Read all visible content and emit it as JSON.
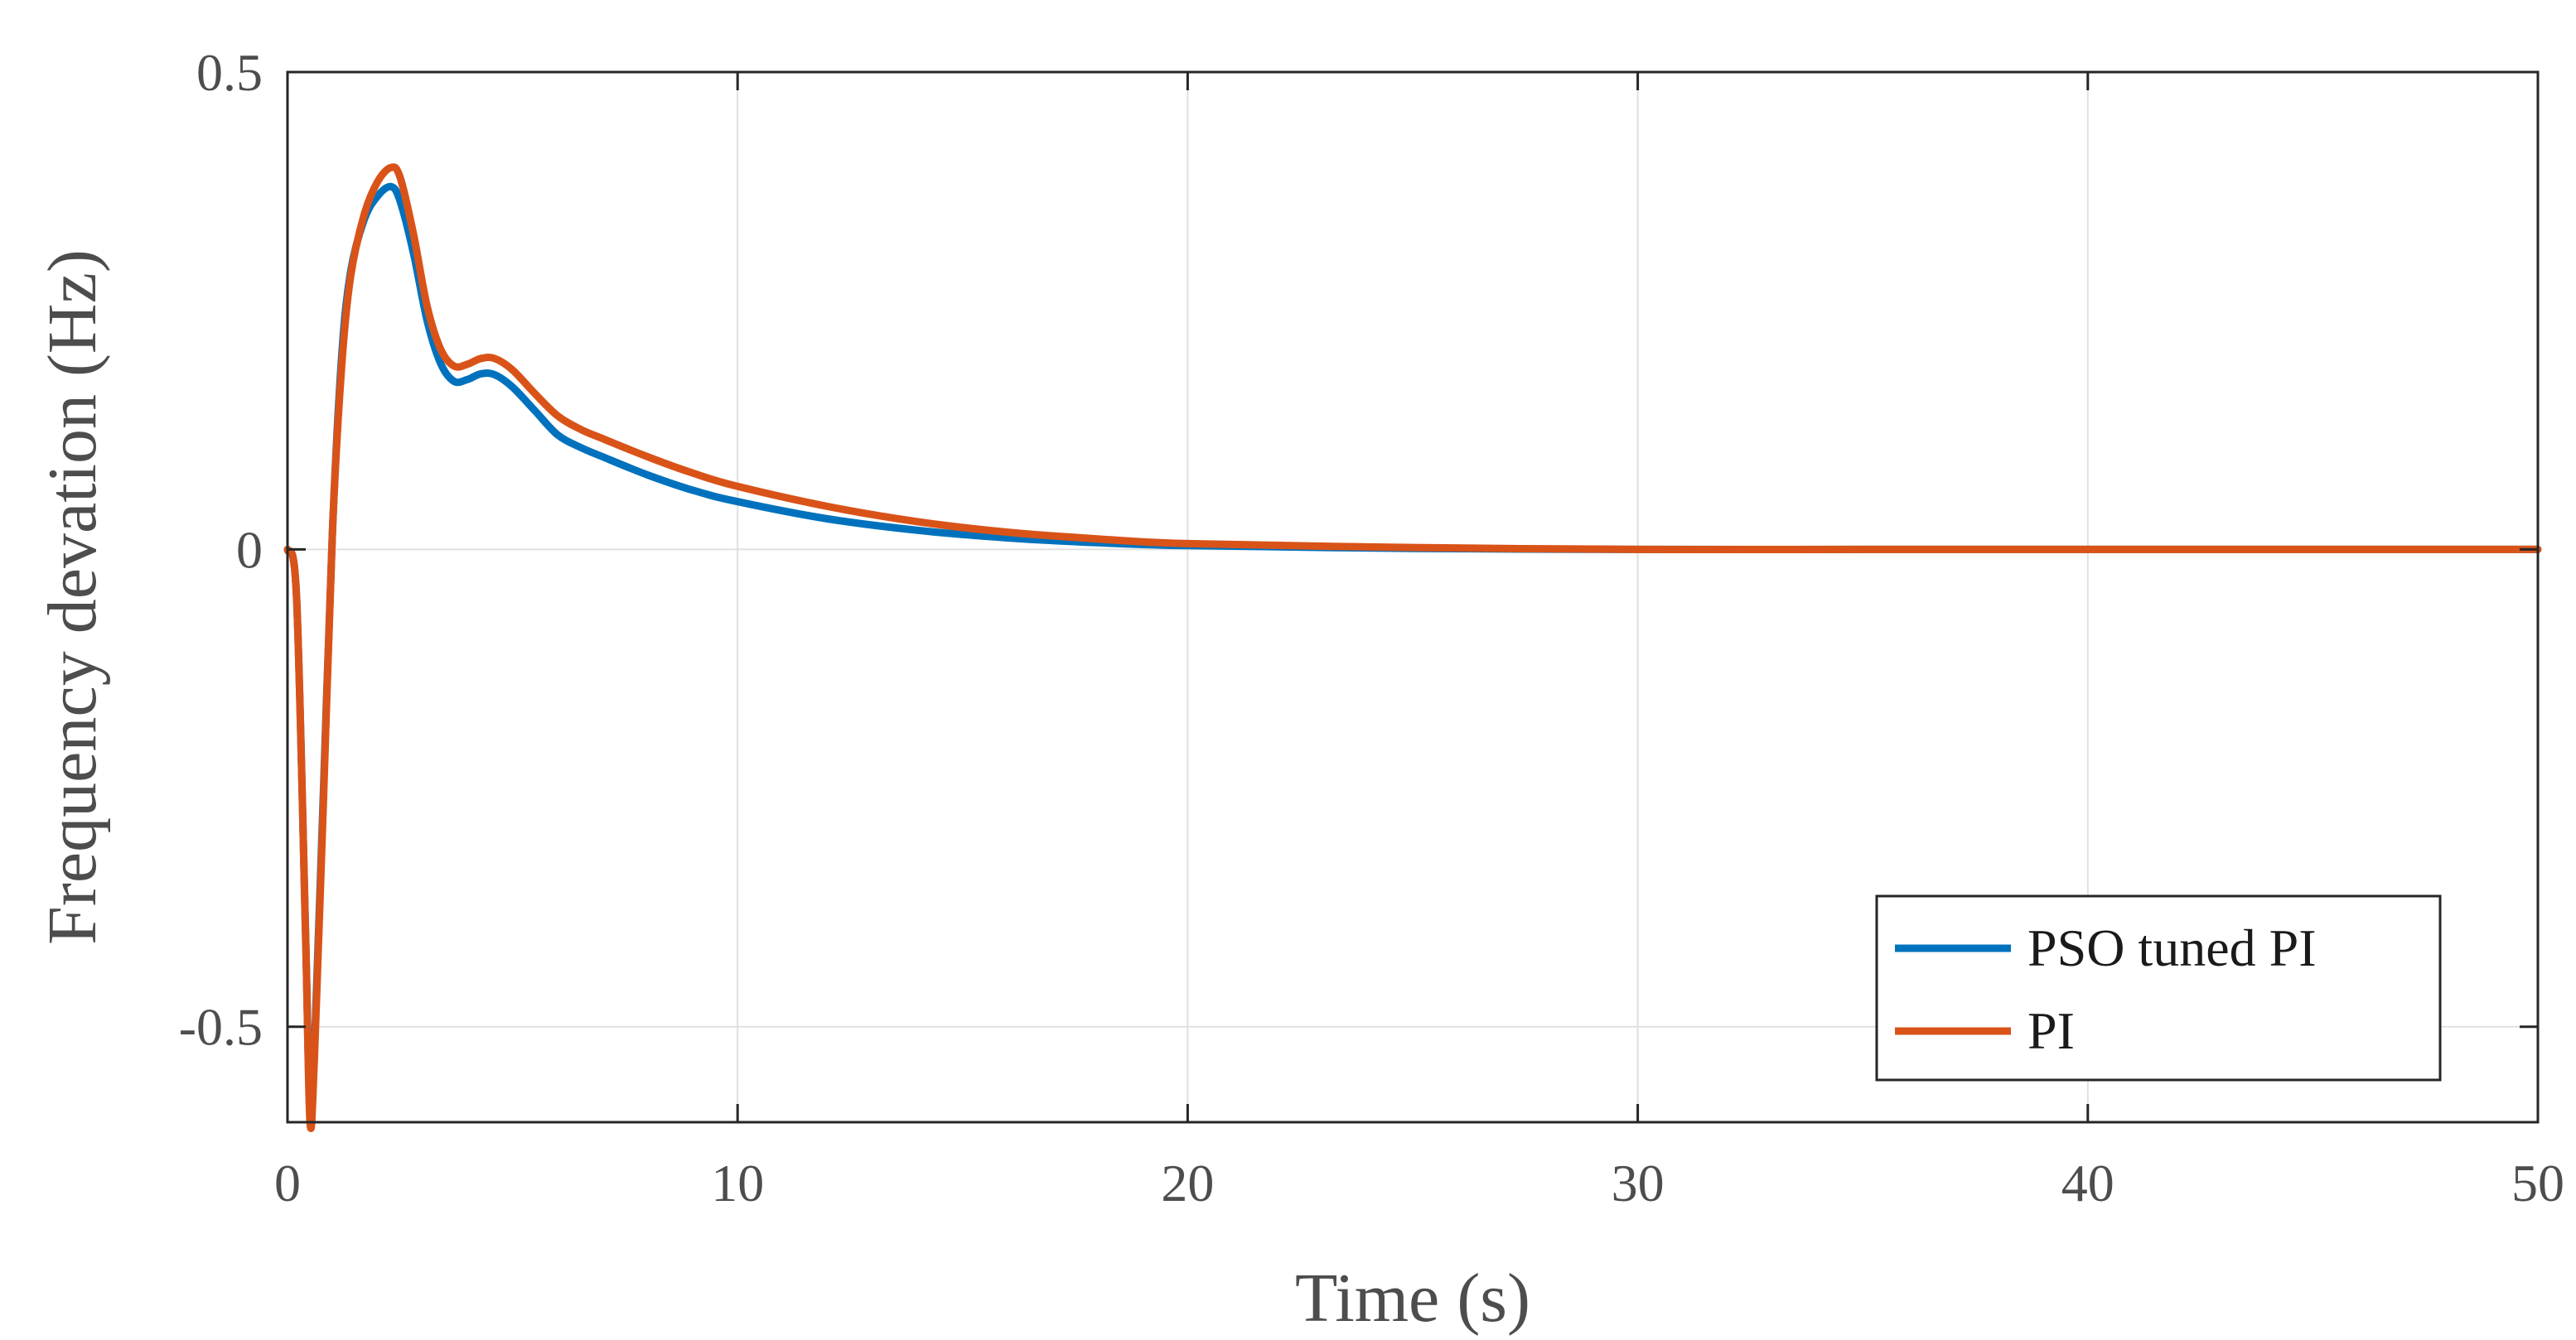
{
  "chart_data": {
    "type": "line",
    "title": "",
    "xlabel": "Time (s)",
    "ylabel": "Frequency devation (Hz)",
    "xlim": [
      0,
      50
    ],
    "ylim": [
      -0.6,
      0.5
    ],
    "xticks": [
      0,
      10,
      20,
      30,
      40,
      50
    ],
    "xtick_labels": [
      "0",
      "10",
      "20",
      "30",
      "40",
      "50"
    ],
    "yticks": [
      -0.5,
      0,
      0.5
    ],
    "ytick_labels": [
      "-0.5",
      "0",
      "0.5"
    ],
    "grid": true,
    "legend_position": "bottom-right",
    "series": [
      {
        "name": "PSO tuned PI",
        "color": "#0072BD",
        "x": [
          0,
          0.2,
          0.4,
          0.5,
          0.6,
          0.8,
          1.0,
          1.2,
          1.4,
          1.7,
          2.0,
          2.3,
          2.5,
          2.8,
          3.1,
          3.4,
          3.7,
          4.0,
          4.3,
          4.6,
          5.0,
          5.5,
          6.0,
          6.5,
          7.0,
          8.0,
          9.0,
          10.0,
          12.0,
          14.0,
          16.0,
          18.0,
          20.0,
          25.0,
          30.0,
          35.0,
          40.0,
          45.0,
          50.0
        ],
        "y": [
          0,
          -0.05,
          -0.4,
          -0.59,
          -0.52,
          -0.25,
          0.02,
          0.2,
          0.29,
          0.345,
          0.37,
          0.38,
          0.365,
          0.31,
          0.24,
          0.195,
          0.176,
          0.178,
          0.184,
          0.183,
          0.17,
          0.145,
          0.12,
          0.107,
          0.097,
          0.078,
          0.062,
          0.05,
          0.032,
          0.02,
          0.012,
          0.007,
          0.004,
          0.001,
          0.0,
          0.0,
          0.0,
          0.0,
          0.0
        ]
      },
      {
        "name": "PI",
        "color": "#D95319",
        "x": [
          0,
          0.2,
          0.4,
          0.5,
          0.6,
          0.8,
          1.0,
          1.2,
          1.4,
          1.7,
          2.0,
          2.3,
          2.5,
          2.8,
          3.1,
          3.4,
          3.7,
          4.0,
          4.3,
          4.6,
          5.0,
          5.5,
          6.0,
          6.5,
          7.0,
          8.0,
          9.0,
          10.0,
          12.0,
          14.0,
          16.0,
          18.0,
          20.0,
          25.0,
          30.0,
          35.0,
          40.0,
          45.0,
          50.0
        ],
        "y": [
          0,
          -0.05,
          -0.4,
          -0.6,
          -0.53,
          -0.26,
          0.02,
          0.19,
          0.285,
          0.35,
          0.385,
          0.4,
          0.39,
          0.33,
          0.255,
          0.21,
          0.192,
          0.194,
          0.2,
          0.2,
          0.188,
          0.163,
          0.14,
          0.126,
          0.116,
          0.097,
          0.08,
          0.066,
          0.045,
          0.029,
          0.018,
          0.011,
          0.006,
          0.002,
          0.0,
          0.0,
          0.0,
          0.0,
          0.0
        ]
      }
    ]
  }
}
